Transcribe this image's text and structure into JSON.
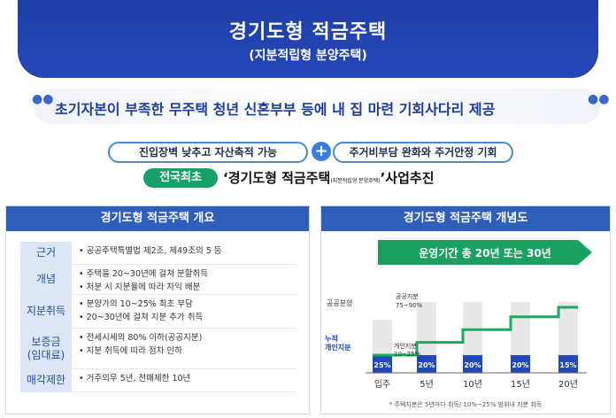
{
  "hero": {
    "title": "경기도형 적금주택",
    "subtitle": "(지분적립형 분양주택)"
  },
  "banner": {
    "text": "초기자본이 부족한 무주택 청년 신혼부부 등에 내 집 마련 기회사다리 제공"
  },
  "pills": {
    "left": "진입장벽 낮추고 자산축적 가능",
    "right": "주거비부담 완화와 주거안정 기회"
  },
  "badge": "전국최초",
  "headline": {
    "quote_open": "‘경기도형 적금주택",
    "note": "(지분적립형 분양주택)",
    "quote_close": "’사업추진"
  },
  "overview": {
    "title": "경기도형 적금주택 개요",
    "rows": [
      {
        "label": "근거",
        "lines": [
          "공공주택특별법 제2조, 제49조의 5 등"
        ]
      },
      {
        "label": "개념",
        "lines": [
          "주택을 20~30년에 걸쳐 분할취득",
          "처분 시 지분율에 따라 차익 배분"
        ]
      },
      {
        "label": "지분취득",
        "lines": [
          "분양가의 10~25% 최초 부담",
          "20~30년에 걸쳐 지분 추가 취득"
        ]
      },
      {
        "label": "보증금\n(임대료)",
        "lines": [
          "전세시세의 80% 이하(공공지분)",
          "지분 취득에 따라 점차 인하"
        ]
      },
      {
        "label": "매각제한",
        "lines": [
          "거주의무 5년, 전매제한 10년"
        ]
      }
    ]
  },
  "concept": {
    "title": "경기도형 적금주택 개념도",
    "period": "운영기간 총 20년 또는 30년",
    "public_label": "공공분양",
    "public_share_label": "공공지분\n75~90%",
    "personal_label": "누적\n개인지분",
    "personal_share_label": "개인지분\n10~25%",
    "footnote": "* 주택지분은 5년마다 취득/ 10%~25% 범위내 지분 취득",
    "colors": {
      "personal": "#1f48b8",
      "public": "#d9d9d9",
      "step_line": "#1aaa60",
      "arrow": "#1aa060"
    }
  },
  "chart_data": {
    "type": "bar",
    "categories": [
      "입주",
      "5년",
      "10년",
      "15년",
      "20년"
    ],
    "series": [
      {
        "name": "개인지분",
        "values": [
          25,
          20,
          20,
          20,
          15
        ]
      }
    ]
  }
}
